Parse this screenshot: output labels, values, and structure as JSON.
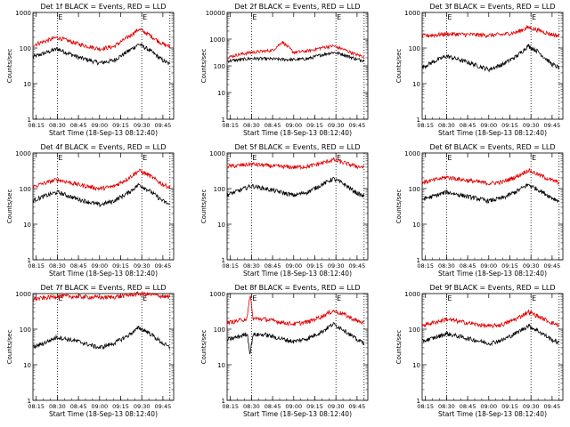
{
  "chart_data": [
    {
      "type": "line",
      "title": "Det 1f BLACK = Events, RED = LLD",
      "xlabel": "Start Time (18-Sep-13 08:12:40)",
      "ylabel": "Counts/sec",
      "yscale": "log",
      "ylim": [
        1,
        1000
      ],
      "x_ticks": [
        "08:15",
        "08:30",
        "08:45",
        "09:00",
        "09:15",
        "09:30",
        "09:45"
      ],
      "y_ticks": [
        "1",
        "10",
        "100",
        "1000"
      ],
      "markers": [
        {
          "time": "08:30",
          "label": "E"
        },
        {
          "time": "09:30",
          "label": "E"
        }
      ],
      "grid": false,
      "series": [
        {
          "name": "BLACK = Events",
          "color": "#000000",
          "times": [
            "08:12",
            "08:20",
            "08:30",
            "08:45",
            "09:00",
            "09:10",
            "09:20",
            "09:28",
            "09:35",
            "09:45",
            "09:50"
          ],
          "values": [
            55,
            70,
            95,
            55,
            38,
            45,
            80,
            130,
            90,
            45,
            35
          ]
        },
        {
          "name": "RED = LLD",
          "color": "#e00000",
          "times": [
            "08:12",
            "08:20",
            "08:30",
            "08:45",
            "09:00",
            "09:10",
            "09:20",
            "09:28",
            "09:35",
            "09:45",
            "09:50"
          ],
          "values": [
            120,
            150,
            200,
            130,
            95,
            110,
            200,
            340,
            240,
            130,
            110
          ]
        }
      ]
    },
    {
      "type": "line",
      "title": "Det 2f BLACK = Events, RED = LLD",
      "xlabel": "Start Time (18-Sep-13 08:12:40)",
      "ylabel": "Counts/sec",
      "yscale": "log",
      "ylim": [
        1,
        10000
      ],
      "x_ticks": [
        "08:15",
        "08:30",
        "08:45",
        "09:00",
        "09:15",
        "09:30",
        "09:45"
      ],
      "y_ticks": [
        "1",
        "10",
        "100",
        "1000",
        "10000"
      ],
      "markers": [
        {
          "time": "08:30",
          "label": "E"
        },
        {
          "time": "09:30",
          "label": "E"
        }
      ],
      "grid": false,
      "series": [
        {
          "name": "BLACK = Events",
          "color": "#000000",
          "times": [
            "08:12",
            "08:20",
            "08:30",
            "08:45",
            "09:00",
            "09:10",
            "09:20",
            "09:28",
            "09:35",
            "09:45",
            "09:50"
          ],
          "values": [
            150,
            165,
            190,
            180,
            170,
            185,
            260,
            320,
            270,
            175,
            160
          ]
        },
        {
          "name": "RED = LLD",
          "color": "#e00000",
          "times": [
            "08:12",
            "08:20",
            "08:30",
            "08:45",
            "08:52",
            "09:00",
            "09:10",
            "09:20",
            "09:28",
            "09:35",
            "09:45",
            "09:50"
          ],
          "values": [
            200,
            260,
            320,
            380,
            800,
            320,
            360,
            480,
            560,
            420,
            260,
            220
          ]
        }
      ]
    },
    {
      "type": "line",
      "title": "Det 3f BLACK = Events, RED = LLD",
      "xlabel": "Start Time (18-Sep-13 08:12:40)",
      "ylabel": "Counts/sec",
      "yscale": "log",
      "ylim": [
        1,
        1000
      ],
      "x_ticks": [
        "08:15",
        "08:30",
        "08:45",
        "09:00",
        "09:15",
        "09:30",
        "09:45"
      ],
      "y_ticks": [
        "1",
        "10",
        "100",
        "1000"
      ],
      "markers": [
        {
          "time": "08:30",
          "label": "E"
        },
        {
          "time": "09:30",
          "label": "E"
        }
      ],
      "grid": false,
      "series": [
        {
          "name": "BLACK = Events",
          "color": "#000000",
          "times": [
            "08:12",
            "08:20",
            "08:30",
            "08:45",
            "09:00",
            "09:10",
            "09:20",
            "09:28",
            "09:35",
            "09:45",
            "09:50"
          ],
          "values": [
            28,
            40,
            60,
            40,
            25,
            35,
            60,
            115,
            80,
            35,
            28
          ]
        },
        {
          "name": "RED = LLD",
          "color": "#e00000",
          "times": [
            "08:12",
            "08:20",
            "08:30",
            "08:45",
            "09:00",
            "09:10",
            "09:20",
            "09:28",
            "09:35",
            "09:45",
            "09:50"
          ],
          "values": [
            220,
            230,
            250,
            240,
            230,
            240,
            280,
            380,
            320,
            240,
            220
          ]
        }
      ]
    },
    {
      "type": "line",
      "title": "Det 4f BLACK = Events, RED = LLD",
      "xlabel": "Start Time (18-Sep-13 08:12:40)",
      "ylabel": "Counts/sec",
      "yscale": "log",
      "ylim": [
        1,
        1000
      ],
      "x_ticks": [
        "08:15",
        "08:30",
        "08:45",
        "09:00",
        "09:15",
        "09:30",
        "09:45"
      ],
      "y_ticks": [
        "1",
        "10",
        "100",
        "1000"
      ],
      "markers": [
        {
          "time": "08:30",
          "label": "E"
        },
        {
          "time": "09:30",
          "label": "E"
        }
      ],
      "grid": false,
      "series": [
        {
          "name": "BLACK = Events",
          "color": "#000000",
          "times": [
            "08:12",
            "08:20",
            "08:30",
            "08:45",
            "09:00",
            "09:10",
            "09:20",
            "09:28",
            "09:35",
            "09:45",
            "09:50"
          ],
          "values": [
            45,
            60,
            80,
            50,
            35,
            45,
            75,
            130,
            90,
            45,
            35
          ]
        },
        {
          "name": "RED = LLD",
          "color": "#e00000",
          "times": [
            "08:12",
            "08:20",
            "08:30",
            "08:45",
            "09:00",
            "09:10",
            "09:20",
            "09:28",
            "09:35",
            "09:45",
            "09:50"
          ],
          "values": [
            110,
            140,
            180,
            130,
            100,
            115,
            190,
            320,
            240,
            130,
            110
          ]
        }
      ]
    },
    {
      "type": "line",
      "title": "Det 5f BLACK = Events, RED = LLD",
      "xlabel": "Start Time (18-Sep-13 08:12:40)",
      "ylabel": "Counts/sec",
      "yscale": "log",
      "ylim": [
        1,
        1000
      ],
      "x_ticks": [
        "08:15",
        "08:30",
        "08:45",
        "09:00",
        "09:15",
        "09:30",
        "09:45"
      ],
      "y_ticks": [
        "1",
        "10",
        "100",
        "1000"
      ],
      "markers": [
        {
          "time": "08:30",
          "label": "E"
        },
        {
          "time": "09:30",
          "label": "E"
        }
      ],
      "grid": false,
      "series": [
        {
          "name": "BLACK = Events",
          "color": "#000000",
          "times": [
            "08:12",
            "08:20",
            "08:30",
            "08:45",
            "09:00",
            "09:10",
            "09:20",
            "09:28",
            "09:35",
            "09:45",
            "09:50"
          ],
          "values": [
            65,
            85,
            120,
            90,
            65,
            80,
            130,
            190,
            140,
            75,
            60
          ]
        },
        {
          "name": "RED = LLD",
          "color": "#e00000",
          "times": [
            "08:12",
            "08:20",
            "08:30",
            "08:45",
            "09:00",
            "09:10",
            "09:20",
            "09:28",
            "09:35",
            "09:45",
            "09:50"
          ],
          "values": [
            420,
            440,
            490,
            430,
            400,
            420,
            520,
            650,
            540,
            420,
            400
          ]
        }
      ]
    },
    {
      "type": "line",
      "title": "Det 6f BLACK = Events, RED = LLD",
      "xlabel": "Start Time (18-Sep-13 08:12:40)",
      "ylabel": "Counts/sec",
      "yscale": "log",
      "ylim": [
        1,
        1000
      ],
      "x_ticks": [
        "08:15",
        "08:30",
        "08:45",
        "09:00",
        "09:15",
        "09:30",
        "09:45"
      ],
      "y_ticks": [
        "1",
        "10",
        "100",
        "1000"
      ],
      "markers": [
        {
          "time": "08:30",
          "label": "E"
        },
        {
          "time": "09:30",
          "label": "E"
        }
      ],
      "grid": false,
      "series": [
        {
          "name": "BLACK = Events",
          "color": "#000000",
          "times": [
            "08:12",
            "08:20",
            "08:30",
            "08:45",
            "09:00",
            "09:10",
            "09:20",
            "09:28",
            "09:35",
            "09:45",
            "09:50"
          ],
          "values": [
            50,
            60,
            80,
            60,
            45,
            55,
            85,
            130,
            95,
            55,
            45
          ]
        },
        {
          "name": "RED = LLD",
          "color": "#e00000",
          "times": [
            "08:12",
            "08:20",
            "08:30",
            "08:45",
            "09:00",
            "09:10",
            "09:20",
            "09:28",
            "09:35",
            "09:45",
            "09:50"
          ],
          "values": [
            150,
            170,
            210,
            170,
            140,
            155,
            220,
            330,
            250,
            170,
            150
          ]
        }
      ]
    },
    {
      "type": "line",
      "title": "Det 7f BLACK = Events, RED = LLD",
      "xlabel": "Start Time (18-Sep-13 08:12:40)",
      "ylabel": "Counts/sec",
      "yscale": "log",
      "ylim": [
        1,
        1000
      ],
      "x_ticks": [
        "08:15",
        "08:30",
        "08:45",
        "09:00",
        "09:15",
        "09:30",
        "09:45"
      ],
      "y_ticks": [
        "1",
        "10",
        "100",
        "1000"
      ],
      "markers": [
        {
          "time": "08:30",
          "label": "E"
        },
        {
          "time": "09:30",
          "label": "E"
        }
      ],
      "grid": false,
      "series": [
        {
          "name": "BLACK = Events",
          "color": "#000000",
          "times": [
            "08:12",
            "08:20",
            "08:30",
            "08:45",
            "09:00",
            "09:10",
            "09:20",
            "09:28",
            "09:35",
            "09:45",
            "09:50"
          ],
          "values": [
            30,
            40,
            60,
            45,
            30,
            40,
            65,
            110,
            80,
            40,
            30
          ]
        },
        {
          "name": "RED = LLD",
          "color": "#e00000",
          "times": [
            "08:12",
            "08:20",
            "08:30",
            "08:45",
            "09:00",
            "09:10",
            "09:20",
            "09:28",
            "09:35",
            "09:45",
            "09:50"
          ],
          "values": [
            700,
            750,
            850,
            820,
            780,
            800,
            900,
            1000,
            950,
            850,
            800
          ]
        }
      ]
    },
    {
      "type": "line",
      "title": "Det 8f BLACK = Events, RED = LLD",
      "xlabel": "Start Time (18-Sep-13 08:12:40)",
      "ylabel": "Counts/sec",
      "yscale": "log",
      "ylim": [
        1,
        1000
      ],
      "x_ticks": [
        "08:15",
        "08:30",
        "08:45",
        "09:00",
        "09:15",
        "09:30",
        "09:45"
      ],
      "y_ticks": [
        "1",
        "10",
        "100",
        "1000"
      ],
      "markers": [
        {
          "time": "08:30",
          "label": "E"
        },
        {
          "time": "09:30",
          "label": "E"
        }
      ],
      "grid": false,
      "series": [
        {
          "name": "BLACK = Events",
          "color": "#000000",
          "times": [
            "08:12",
            "08:20",
            "08:27",
            "08:29",
            "08:31",
            "08:40",
            "08:50",
            "09:00",
            "09:10",
            "09:20",
            "09:28",
            "09:35",
            "09:45",
            "09:50"
          ],
          "values": [
            50,
            60,
            75,
            20,
            70,
            70,
            55,
            45,
            55,
            85,
            140,
            100,
            50,
            42
          ]
        },
        {
          "name": "RED = LLD",
          "color": "#e00000",
          "times": [
            "08:12",
            "08:20",
            "08:27",
            "08:29",
            "08:31",
            "08:40",
            "08:50",
            "09:00",
            "09:10",
            "09:20",
            "09:28",
            "09:35",
            "09:45",
            "09:50"
          ],
          "values": [
            150,
            170,
            200,
            1000,
            200,
            190,
            160,
            140,
            160,
            230,
            330,
            270,
            170,
            150
          ]
        }
      ]
    },
    {
      "type": "line",
      "title": "Det 9f BLACK = Events, RED = LLD",
      "xlabel": "Start Time (18-Sep-13 08:12:40)",
      "ylabel": "Counts/sec",
      "yscale": "log",
      "ylim": [
        1,
        1000
      ],
      "x_ticks": [
        "08:15",
        "08:30",
        "08:45",
        "09:00",
        "09:15",
        "09:30",
        "09:45"
      ],
      "y_ticks": [
        "1",
        "10",
        "100",
        "1000"
      ],
      "markers": [
        {
          "time": "08:30",
          "label": "E"
        },
        {
          "time": "09:30",
          "label": "E"
        }
      ],
      "grid": false,
      "series": [
        {
          "name": "BLACK = Events",
          "color": "#000000",
          "times": [
            "08:12",
            "08:20",
            "08:30",
            "08:45",
            "09:00",
            "09:10",
            "09:20",
            "09:28",
            "09:35",
            "09:45",
            "09:50"
          ],
          "values": [
            45,
            55,
            75,
            55,
            40,
            50,
            80,
            125,
            90,
            50,
            42
          ]
        },
        {
          "name": "RED = LLD",
          "color": "#e00000",
          "times": [
            "08:12",
            "08:20",
            "08:30",
            "08:45",
            "09:00",
            "09:10",
            "09:20",
            "09:28",
            "09:35",
            "09:45",
            "09:50"
          ],
          "values": [
            130,
            150,
            190,
            150,
            120,
            135,
            200,
            310,
            230,
            150,
            130
          ]
        }
      ]
    }
  ]
}
